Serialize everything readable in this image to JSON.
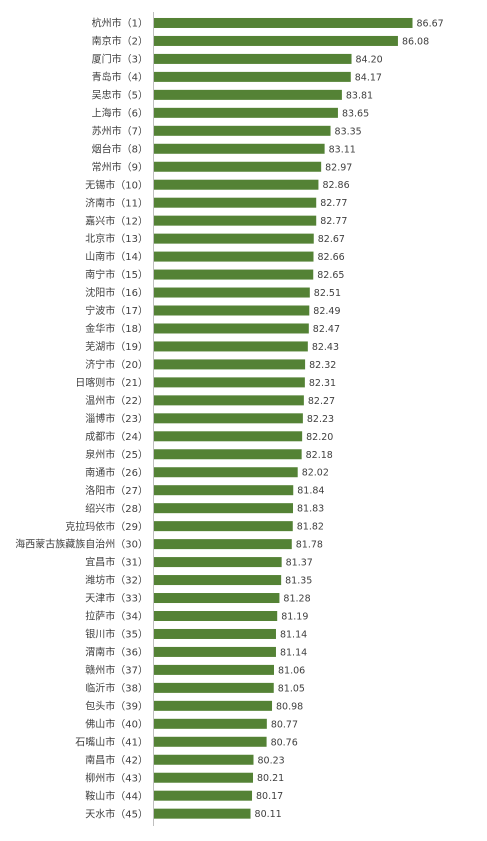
{
  "chart_data": {
    "type": "bar",
    "orientation": "horizontal",
    "bar_color": "#548235",
    "xlim": [
      76.2,
      87.5
    ],
    "grid": false,
    "legend": "none",
    "categories": [
      "杭州市（1）",
      "南京市（2）",
      "厦门市（3）",
      "青岛市（4）",
      "吴忠市（5）",
      "上海市（6）",
      "苏州市（7）",
      "烟台市（8）",
      "常州市（9）",
      "无锡市（10）",
      "济南市（11）",
      "嘉兴市（12）",
      "北京市（13）",
      "山南市（14）",
      "南宁市（15）",
      "沈阳市（16）",
      "宁波市（17）",
      "金华市（18）",
      "芜湖市（19）",
      "济宁市（20）",
      "日喀则市（21）",
      "温州市（22）",
      "淄博市（23）",
      "成都市（24）",
      "泉州市（25）",
      "南通市（26）",
      "洛阳市（27）",
      "绍兴市（28）",
      "克拉玛依市（29）",
      "海西蒙古族藏族自治州（30）",
      "宜昌市（31）",
      "潍坊市（32）",
      "天津市（33）",
      "拉萨市（34）",
      "银川市（35）",
      "渭南市（36）",
      "赣州市（37）",
      "临沂市（38）",
      "包头市（39）",
      "佛山市（40）",
      "石嘴山市（41）",
      "南昌市（42）",
      "柳州市（43）",
      "鞍山市（44）",
      "天水市（45）"
    ],
    "values": [
      86.67,
      86.08,
      84.2,
      84.17,
      83.81,
      83.65,
      83.35,
      83.11,
      82.97,
      82.86,
      82.77,
      82.77,
      82.67,
      82.66,
      82.65,
      82.51,
      82.49,
      82.47,
      82.43,
      82.32,
      82.31,
      82.27,
      82.23,
      82.2,
      82.18,
      82.02,
      81.84,
      81.83,
      81.82,
      81.78,
      81.37,
      81.35,
      81.28,
      81.19,
      81.14,
      81.14,
      81.06,
      81.05,
      80.98,
      80.77,
      80.76,
      80.23,
      80.21,
      80.17,
      80.11
    ],
    "value_labels": [
      "86.67",
      "86.08",
      "84.20",
      "84.17",
      "83.81",
      "83.65",
      "83.35",
      "83.11",
      "82.97",
      "82.86",
      "82.77",
      "82.77",
      "82.67",
      "82.66",
      "82.65",
      "82.51",
      "82.49",
      "82.47",
      "82.43",
      "82.32",
      "82.31",
      "82.27",
      "82.23",
      "82.20",
      "82.18",
      "82.02",
      "81.84",
      "81.83",
      "81.82",
      "81.78",
      "81.37",
      "81.35",
      "81.28",
      "81.19",
      "81.14",
      "81.14",
      "81.06",
      "81.05",
      "80.98",
      "80.77",
      "80.76",
      "80.23",
      "80.21",
      "80.17",
      "80.11"
    ]
  }
}
